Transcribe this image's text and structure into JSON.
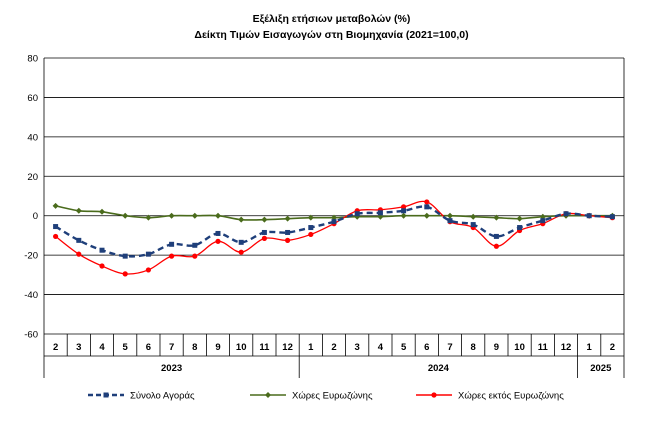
{
  "chart_data": {
    "type": "line",
    "title": "Εξέλιξη ετήσιων μεταβολών (%)",
    "subtitle": "Δείκτη Τιμών Εισαγωγών στη Βιομηχανία (2021=100,0)",
    "xlabel": "",
    "ylabel": "",
    "ylim": [
      -60,
      80
    ],
    "yticks": [
      -60,
      -40,
      -20,
      0,
      20,
      40,
      60,
      80
    ],
    "grid": true,
    "legend_position": "bottom",
    "categories": [
      "2",
      "3",
      "4",
      "5",
      "6",
      "7",
      "8",
      "9",
      "10",
      "11",
      "12",
      "1",
      "2",
      "3",
      "4",
      "5",
      "6",
      "7",
      "8",
      "9",
      "10",
      "11",
      "12",
      "1",
      "2"
    ],
    "years": [
      {
        "label": "2023",
        "start": 0,
        "count": 11
      },
      {
        "label": "2024",
        "start": 11,
        "count": 12
      },
      {
        "label": "2025",
        "start": 23,
        "count": 2
      }
    ],
    "series": [
      {
        "name": "Σύνολο Αγοράς",
        "color": "#1f3f7a",
        "style": "dashed-square",
        "values": [
          -5.5,
          -12.5,
          -17.5,
          -20.5,
          -19.5,
          -14.5,
          -15.0,
          -9.0,
          -13.5,
          -8.5,
          -8.5,
          -6.0,
          -3.0,
          1.0,
          1.5,
          2.5,
          4.5,
          -2.5,
          -4.5,
          -10.5,
          -6.0,
          -2.5,
          1.0,
          0.0,
          -0.5
        ]
      },
      {
        "name": "Χώρες Ευρωζώνης",
        "color": "#4a6b1c",
        "style": "solid-diamond",
        "values": [
          5.0,
          2.5,
          2.0,
          0.0,
          -1.0,
          0.0,
          0.0,
          0.0,
          -2.0,
          -2.0,
          -1.5,
          -1.0,
          -1.0,
          -0.5,
          -0.5,
          0.0,
          0.0,
          0.0,
          -0.5,
          -1.0,
          -1.5,
          -0.5,
          0.0,
          0.0,
          0.0
        ]
      },
      {
        "name": "Χώρες εκτός Ευρωζώνης",
        "color": "#ff0000",
        "style": "solid-circle",
        "values": [
          -10.5,
          -19.5,
          -25.5,
          -29.5,
          -27.5,
          -20.5,
          -20.5,
          -13.0,
          -18.5,
          -11.5,
          -12.5,
          -9.5,
          -4.0,
          2.5,
          3.0,
          4.5,
          7.0,
          -3.0,
          -6.0,
          -15.5,
          -7.5,
          -4.0,
          1.0,
          0.0,
          -1.0
        ]
      }
    ]
  }
}
